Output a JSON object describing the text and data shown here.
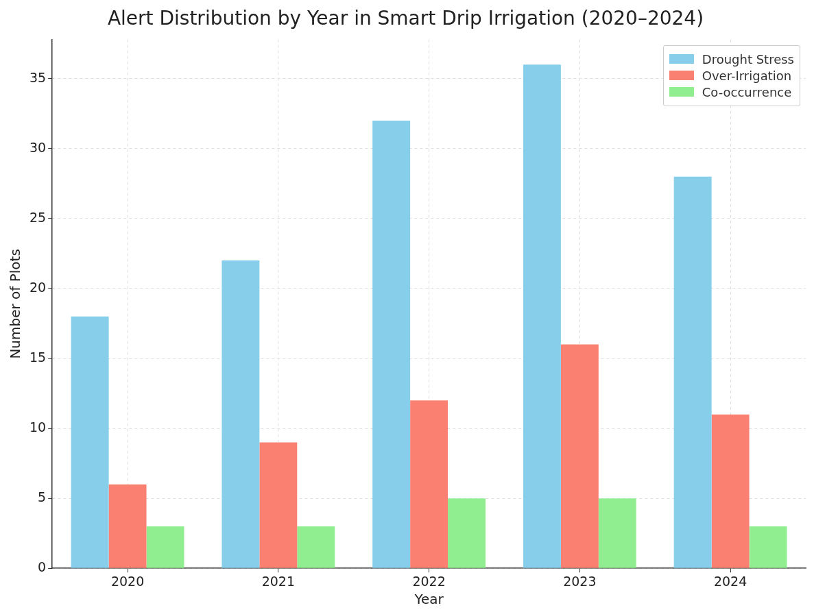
{
  "chart_data": {
    "type": "bar",
    "title": "Alert Distribution by Year in Smart Drip Irrigation (2020–2024)",
    "xlabel": "Year",
    "ylabel": "Number of Plots",
    "categories": [
      "2020",
      "2021",
      "2022",
      "2023",
      "2024"
    ],
    "series": [
      {
        "name": "Drought Stress",
        "color": "#87ceeb",
        "values": [
          18,
          22,
          32,
          36,
          28
        ]
      },
      {
        "name": "Over-Irrigation",
        "color": "#fa8072",
        "values": [
          6,
          9,
          12,
          16,
          11
        ]
      },
      {
        "name": "Co-occurrence",
        "color": "#90ee90",
        "values": [
          3,
          3,
          5,
          5,
          3
        ]
      }
    ],
    "ylim": [
      0,
      37.8
    ],
    "yticks": [
      0,
      5,
      10,
      15,
      20,
      25,
      30,
      35
    ],
    "grid": true,
    "legend": "top right"
  }
}
